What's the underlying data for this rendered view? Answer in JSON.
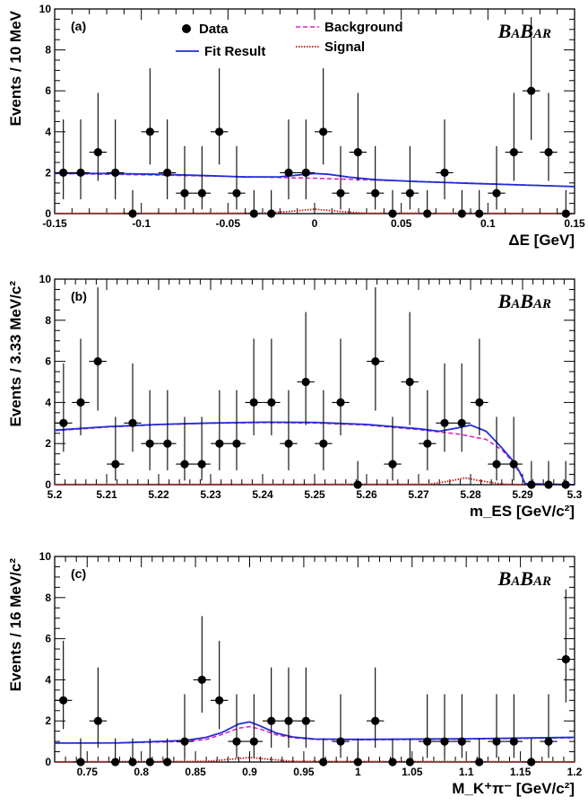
{
  "colors": {
    "data": "#000000",
    "fit": "#1f2fd6",
    "background": "#e020c8",
    "signal": "#cc1010"
  },
  "logo_text": "BABAR",
  "chart_data": [
    {
      "type": "scatter",
      "panel_label": "(a)",
      "xlabel": "ΔE [GeV]",
      "ylabel": "Events / 10 MeV",
      "xlim": [
        -0.15,
        0.15
      ],
      "ylim": [
        0,
        10
      ],
      "xticks": [
        -0.15,
        -0.1,
        -0.05,
        0,
        0.05,
        0.1,
        0.15
      ],
      "xtick_labels": [
        "-0.15",
        "-0.1",
        "-0.05",
        "0",
        "0.05",
        "0.1",
        "0.15"
      ],
      "yticks": [
        0,
        2,
        4,
        6,
        8,
        10
      ],
      "ytick_labels": [
        "0",
        "2",
        "4",
        "6",
        "8",
        "10"
      ],
      "x_halfwidth": 0.005,
      "legend": [
        {
          "label": "Data",
          "kind": "marker"
        },
        {
          "label": "Fit Result",
          "kind": "fit"
        },
        {
          "label": "Background",
          "kind": "background"
        },
        {
          "label": "Signal",
          "kind": "signal"
        }
      ],
      "points": [
        {
          "x": -0.145,
          "y": 2,
          "lo": 0.7,
          "hi": 4.6
        },
        {
          "x": -0.135,
          "y": 2,
          "lo": 0.7,
          "hi": 4.6
        },
        {
          "x": -0.125,
          "y": 3,
          "lo": 1.6,
          "hi": 5.9
        },
        {
          "x": -0.115,
          "y": 2,
          "lo": 0.7,
          "hi": 4.6
        },
        {
          "x": -0.105,
          "y": 0,
          "lo": 0,
          "hi": 1.15
        },
        {
          "x": -0.095,
          "y": 4,
          "lo": 2.4,
          "hi": 7.1
        },
        {
          "x": -0.085,
          "y": 2,
          "lo": 0.7,
          "hi": 4.6
        },
        {
          "x": -0.075,
          "y": 1,
          "lo": 0.2,
          "hi": 3.3
        },
        {
          "x": -0.065,
          "y": 1,
          "lo": 0.2,
          "hi": 3.3
        },
        {
          "x": -0.055,
          "y": 4,
          "lo": 2.4,
          "hi": 7.1
        },
        {
          "x": -0.045,
          "y": 1,
          "lo": 0.2,
          "hi": 3.3
        },
        {
          "x": -0.035,
          "y": 0,
          "lo": 0,
          "hi": 1.15
        },
        {
          "x": -0.025,
          "y": 0,
          "lo": 0,
          "hi": 1.15
        },
        {
          "x": -0.015,
          "y": 2,
          "lo": 0.7,
          "hi": 4.6
        },
        {
          "x": -0.005,
          "y": 2,
          "lo": 0.7,
          "hi": 4.6
        },
        {
          "x": 0.005,
          "y": 4,
          "lo": 2.4,
          "hi": 7.1
        },
        {
          "x": 0.015,
          "y": 1,
          "lo": 0.2,
          "hi": 3.3
        },
        {
          "x": 0.025,
          "y": 3,
          "lo": 1.6,
          "hi": 5.9
        },
        {
          "x": 0.035,
          "y": 1,
          "lo": 0.2,
          "hi": 3.3
        },
        {
          "x": 0.045,
          "y": 0,
          "lo": 0,
          "hi": 1.15
        },
        {
          "x": 0.055,
          "y": 1,
          "lo": 0.2,
          "hi": 3.3
        },
        {
          "x": 0.065,
          "y": 0,
          "lo": 0,
          "hi": 1.15
        },
        {
          "x": 0.075,
          "y": 2,
          "lo": 0.7,
          "hi": 4.6
        },
        {
          "x": 0.085,
          "y": 0,
          "lo": 0,
          "hi": 1.15
        },
        {
          "x": 0.095,
          "y": 0,
          "lo": 0,
          "hi": 1.15
        },
        {
          "x": 0.105,
          "y": 1,
          "lo": 0.2,
          "hi": 3.3
        },
        {
          "x": 0.115,
          "y": 3,
          "lo": 1.6,
          "hi": 5.9
        },
        {
          "x": 0.125,
          "y": 6,
          "lo": 3.6,
          "hi": 9.6
        },
        {
          "x": 0.135,
          "y": 3,
          "lo": 1.6,
          "hi": 5.9
        },
        {
          "x": 0.145,
          "y": 0,
          "lo": 0,
          "hi": 1.15
        }
      ],
      "fit": [
        [
          -0.15,
          1.97
        ],
        [
          -0.12,
          1.96
        ],
        [
          -0.09,
          1.92
        ],
        [
          -0.06,
          1.85
        ],
        [
          -0.04,
          1.79
        ],
        [
          -0.02,
          1.8
        ],
        [
          -0.008,
          1.9
        ],
        [
          0,
          1.96
        ],
        [
          0.008,
          1.92
        ],
        [
          0.02,
          1.78
        ],
        [
          0.035,
          1.66
        ],
        [
          0.06,
          1.56
        ],
        [
          0.09,
          1.48
        ],
        [
          0.12,
          1.4
        ],
        [
          0.15,
          1.32
        ]
      ],
      "background": [
        [
          -0.15,
          1.96
        ],
        [
          -0.1,
          1.9
        ],
        [
          -0.05,
          1.82
        ],
        [
          0,
          1.73
        ],
        [
          0.05,
          1.6
        ],
        [
          0.1,
          1.46
        ],
        [
          0.15,
          1.32
        ]
      ],
      "signal": [
        [
          -0.15,
          0.01
        ],
        [
          -0.03,
          0.02
        ],
        [
          -0.015,
          0.1
        ],
        [
          0,
          0.22
        ],
        [
          0.015,
          0.1
        ],
        [
          0.03,
          0.02
        ],
        [
          0.15,
          0.01
        ]
      ]
    },
    {
      "type": "scatter",
      "panel_label": "(b)",
      "xlabel": "m_ES [GeV/c²]",
      "ylabel": "Events / 3.33 MeV/c²",
      "xlim": [
        5.2,
        5.3
      ],
      "ylim": [
        0,
        10
      ],
      "xticks": [
        5.2,
        5.21,
        5.22,
        5.23,
        5.24,
        5.25,
        5.26,
        5.27,
        5.28,
        5.29,
        5.3
      ],
      "xtick_labels": [
        "5.2",
        "5.21",
        "5.22",
        "5.23",
        "5.24",
        "5.25",
        "5.26",
        "5.27",
        "5.28",
        "5.29",
        "5.3"
      ],
      "yticks": [
        0,
        2,
        4,
        6,
        8,
        10
      ],
      "ytick_labels": [
        "0",
        "2",
        "4",
        "6",
        "8",
        "10"
      ],
      "x_halfwidth": 0.00167,
      "points": [
        {
          "x": 5.2017,
          "y": 3,
          "lo": 1.6,
          "hi": 5.9
        },
        {
          "x": 5.205,
          "y": 4,
          "lo": 2.4,
          "hi": 7.1
        },
        {
          "x": 5.2083,
          "y": 6,
          "lo": 3.6,
          "hi": 9.6
        },
        {
          "x": 5.2117,
          "y": 1,
          "lo": 0.2,
          "hi": 3.3
        },
        {
          "x": 5.215,
          "y": 3,
          "lo": 1.6,
          "hi": 5.9
        },
        {
          "x": 5.2183,
          "y": 2,
          "lo": 0.7,
          "hi": 4.6
        },
        {
          "x": 5.2217,
          "y": 2,
          "lo": 0.7,
          "hi": 4.6
        },
        {
          "x": 5.225,
          "y": 1,
          "lo": 0.2,
          "hi": 3.3
        },
        {
          "x": 5.2283,
          "y": 1,
          "lo": 0.2,
          "hi": 3.3
        },
        {
          "x": 5.2317,
          "y": 2,
          "lo": 0.7,
          "hi": 4.6
        },
        {
          "x": 5.235,
          "y": 2,
          "lo": 0.7,
          "hi": 4.6
        },
        {
          "x": 5.2383,
          "y": 4,
          "lo": 2.4,
          "hi": 7.1
        },
        {
          "x": 5.2417,
          "y": 4,
          "lo": 2.4,
          "hi": 7.1
        },
        {
          "x": 5.245,
          "y": 2,
          "lo": 0.7,
          "hi": 4.6
        },
        {
          "x": 5.2483,
          "y": 5,
          "lo": 2.9,
          "hi": 8.4
        },
        {
          "x": 5.2517,
          "y": 2,
          "lo": 0.7,
          "hi": 4.6
        },
        {
          "x": 5.255,
          "y": 4,
          "lo": 2.4,
          "hi": 7.1
        },
        {
          "x": 5.2583,
          "y": 0,
          "lo": 0,
          "hi": 1.15
        },
        {
          "x": 5.2617,
          "y": 6,
          "lo": 3.6,
          "hi": 9.6
        },
        {
          "x": 5.265,
          "y": 1,
          "lo": 0.2,
          "hi": 3.3
        },
        {
          "x": 5.2683,
          "y": 5,
          "lo": 2.9,
          "hi": 8.4
        },
        {
          "x": 5.2717,
          "y": 2,
          "lo": 0.7,
          "hi": 4.6
        },
        {
          "x": 5.275,
          "y": 3,
          "lo": 1.6,
          "hi": 5.9
        },
        {
          "x": 5.2783,
          "y": 3,
          "lo": 1.6,
          "hi": 5.9
        },
        {
          "x": 5.2817,
          "y": 4,
          "lo": 2.4,
          "hi": 7.1
        },
        {
          "x": 5.285,
          "y": 1,
          "lo": 0.2,
          "hi": 3.3
        },
        {
          "x": 5.2883,
          "y": 1,
          "lo": 0.2,
          "hi": 3.3
        },
        {
          "x": 5.2917,
          "y": 0,
          "lo": 0,
          "hi": 1.15
        },
        {
          "x": 5.295,
          "y": 0,
          "lo": 0,
          "hi": 1.15
        },
        {
          "x": 5.2983,
          "y": 0,
          "lo": 0,
          "hi": 1.15
        }
      ],
      "fit": [
        [
          5.2,
          2.65
        ],
        [
          5.21,
          2.82
        ],
        [
          5.22,
          2.93
        ],
        [
          5.23,
          3.0
        ],
        [
          5.24,
          3.04
        ],
        [
          5.25,
          3.03
        ],
        [
          5.26,
          2.93
        ],
        [
          5.27,
          2.72
        ],
        [
          5.274,
          2.6
        ],
        [
          5.278,
          2.78
        ],
        [
          5.28,
          2.9
        ],
        [
          5.283,
          2.6
        ],
        [
          5.286,
          1.8
        ],
        [
          5.288,
          1.2
        ],
        [
          5.2895,
          0.6
        ],
        [
          5.2905,
          0.05
        ],
        [
          5.3,
          0.0
        ]
      ],
      "background": [
        [
          5.2,
          2.63
        ],
        [
          5.21,
          2.8
        ],
        [
          5.22,
          2.92
        ],
        [
          5.23,
          2.99
        ],
        [
          5.24,
          3.02
        ],
        [
          5.25,
          3.0
        ],
        [
          5.26,
          2.9
        ],
        [
          5.27,
          2.68
        ],
        [
          5.278,
          2.45
        ],
        [
          5.283,
          2.2
        ],
        [
          5.286,
          1.7
        ],
        [
          5.288,
          1.15
        ],
        [
          5.2895,
          0.55
        ],
        [
          5.2905,
          0.05
        ],
        [
          5.3,
          0.0
        ]
      ],
      "signal": [
        [
          5.2,
          0.01
        ],
        [
          5.272,
          0.02
        ],
        [
          5.276,
          0.18
        ],
        [
          5.279,
          0.33
        ],
        [
          5.282,
          0.18
        ],
        [
          5.286,
          0.03
        ],
        [
          5.29,
          0.0
        ],
        [
          5.3,
          0.0
        ]
      ]
    },
    {
      "type": "scatter",
      "panel_label": "(c)",
      "xlabel": "M_K⁺π⁻ [GeV/c²]",
      "ylabel": "Events / 16 MeV/c²",
      "xlim": [
        0.72,
        1.2
      ],
      "ylim": [
        0,
        10
      ],
      "xticks": [
        0.75,
        0.8,
        0.85,
        0.9,
        0.95,
        1,
        1.05,
        1.1,
        1.15,
        1.2
      ],
      "xtick_labels": [
        "0.75",
        "0.8",
        "0.85",
        "0.9",
        "0.95",
        "1",
        "1.05",
        "1.1",
        "1.15",
        "1.2"
      ],
      "yticks": [
        0,
        2,
        4,
        6,
        8,
        10
      ],
      "ytick_labels": [
        "0",
        "2",
        "4",
        "6",
        "8",
        "10"
      ],
      "x_halfwidth": 0.008,
      "points": [
        {
          "x": 0.728,
          "y": 3,
          "lo": 1.6,
          "hi": 5.9
        },
        {
          "x": 0.744,
          "y": 0,
          "lo": 0,
          "hi": 1.15
        },
        {
          "x": 0.76,
          "y": 2,
          "lo": 0.7,
          "hi": 4.6
        },
        {
          "x": 0.776,
          "y": 0,
          "lo": 0,
          "hi": 1.15
        },
        {
          "x": 0.792,
          "y": 0,
          "lo": 0,
          "hi": 1.15
        },
        {
          "x": 0.808,
          "y": 0,
          "lo": 0,
          "hi": 1.15
        },
        {
          "x": 0.824,
          "y": 0,
          "lo": 0,
          "hi": 1.15
        },
        {
          "x": 0.84,
          "y": 1,
          "lo": 0.2,
          "hi": 3.3
        },
        {
          "x": 0.856,
          "y": 4,
          "lo": 2.4,
          "hi": 7.1
        },
        {
          "x": 0.872,
          "y": 3,
          "lo": 1.6,
          "hi": 5.9
        },
        {
          "x": 0.888,
          "y": 1,
          "lo": 0.2,
          "hi": 3.3
        },
        {
          "x": 0.904,
          "y": 1,
          "lo": 0.2,
          "hi": 3.3
        },
        {
          "x": 0.92,
          "y": 2,
          "lo": 0.7,
          "hi": 4.6
        },
        {
          "x": 0.936,
          "y": 2,
          "lo": 0.7,
          "hi": 4.6
        },
        {
          "x": 0.952,
          "y": 2,
          "lo": 0.7,
          "hi": 4.6
        },
        {
          "x": 0.968,
          "y": 0,
          "lo": 0,
          "hi": 1.15
        },
        {
          "x": 0.984,
          "y": 1,
          "lo": 0.2,
          "hi": 3.3
        },
        {
          "x": 1.0,
          "y": 0,
          "lo": 0,
          "hi": 1.15
        },
        {
          "x": 1.016,
          "y": 2,
          "lo": 0.7,
          "hi": 4.6
        },
        {
          "x": 1.032,
          "y": 0,
          "lo": 0,
          "hi": 1.15
        },
        {
          "x": 1.048,
          "y": 0,
          "lo": 0,
          "hi": 1.15
        },
        {
          "x": 1.064,
          "y": 1,
          "lo": 0.2,
          "hi": 3.3
        },
        {
          "x": 1.08,
          "y": 1,
          "lo": 0.2,
          "hi": 3.3
        },
        {
          "x": 1.096,
          "y": 1,
          "lo": 0.2,
          "hi": 3.3
        },
        {
          "x": 1.112,
          "y": 0,
          "lo": 0,
          "hi": 1.15
        },
        {
          "x": 1.128,
          "y": 1,
          "lo": 0.2,
          "hi": 3.3
        },
        {
          "x": 1.144,
          "y": 1,
          "lo": 0.2,
          "hi": 3.3
        },
        {
          "x": 1.16,
          "y": 0,
          "lo": 0,
          "hi": 1.15
        },
        {
          "x": 1.176,
          "y": 1,
          "lo": 0.2,
          "hi": 3.3
        },
        {
          "x": 1.192,
          "y": 5,
          "lo": 2.9,
          "hi": 8.4
        }
      ],
      "fit": [
        [
          0.72,
          0.92
        ],
        [
          0.78,
          0.93
        ],
        [
          0.84,
          1.05
        ],
        [
          0.86,
          1.2
        ],
        [
          0.875,
          1.45
        ],
        [
          0.89,
          1.85
        ],
        [
          0.9,
          1.95
        ],
        [
          0.91,
          1.75
        ],
        [
          0.925,
          1.4
        ],
        [
          0.94,
          1.22
        ],
        [
          0.96,
          1.12
        ],
        [
          1.0,
          1.1
        ],
        [
          1.1,
          1.13
        ],
        [
          1.2,
          1.2
        ]
      ],
      "background": [
        [
          0.72,
          0.92
        ],
        [
          0.78,
          0.93
        ],
        [
          0.84,
          1.0
        ],
        [
          0.86,
          1.1
        ],
        [
          0.875,
          1.35
        ],
        [
          0.89,
          1.65
        ],
        [
          0.9,
          1.72
        ],
        [
          0.91,
          1.6
        ],
        [
          0.925,
          1.32
        ],
        [
          0.94,
          1.18
        ],
        [
          0.96,
          1.1
        ],
        [
          1.0,
          1.08
        ],
        [
          1.1,
          1.12
        ],
        [
          1.2,
          1.18
        ]
      ],
      "signal": [
        [
          0.72,
          0.01
        ],
        [
          0.86,
          0.03
        ],
        [
          0.885,
          0.15
        ],
        [
          0.9,
          0.22
        ],
        [
          0.915,
          0.15
        ],
        [
          0.94,
          0.03
        ],
        [
          1.2,
          0.01
        ]
      ]
    }
  ]
}
